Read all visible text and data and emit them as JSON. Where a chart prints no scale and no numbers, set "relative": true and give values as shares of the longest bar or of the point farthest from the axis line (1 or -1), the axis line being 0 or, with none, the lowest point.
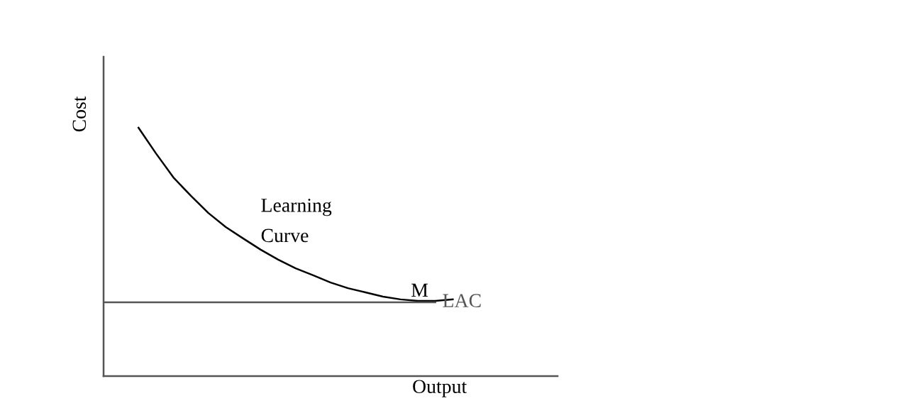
{
  "chart_data": {
    "type": "line",
    "relative": true,
    "xlabel": "Output",
    "ylabel": "Cost",
    "categories": [
      null,
      null,
      null,
      null,
      null,
      null,
      null,
      null,
      null,
      null,
      null,
      null,
      null,
      null,
      null,
      null,
      null,
      null,
      null,
      null,
      null,
      null,
      null,
      null,
      null,
      null,
      null
    ],
    "series": [
      {
        "name": "Learning\nCurve",
        "color": "#000000",
        "values": [
          null,
          null,
          1,
          0.897,
          0.8,
          0.726,
          0.657,
          0.6,
          0.554,
          0.509,
          0.469,
          0.434,
          0.406,
          0.377,
          0.354,
          0.337,
          0.32,
          0.309,
          0.303,
          0.303,
          0.309,
          null,
          null,
          null,
          null,
          null,
          null
        ]
      },
      {
        "name": "LAC",
        "color": "#555555",
        "values": [
          0.297,
          0.297,
          0.297,
          0.297,
          0.297,
          0.297,
          0.297,
          0.297,
          0.297,
          0.297,
          0.297,
          0.297,
          0.297,
          0.297,
          0.297,
          0.297,
          0.297,
          0.297,
          0.297,
          0.297,
          null,
          null,
          null,
          null,
          null,
          null,
          null
        ]
      }
    ],
    "annotations": [
      {
        "text": "M",
        "y": 0.303
      }
    ],
    "marker": "none",
    "line_style": "solid"
  }
}
